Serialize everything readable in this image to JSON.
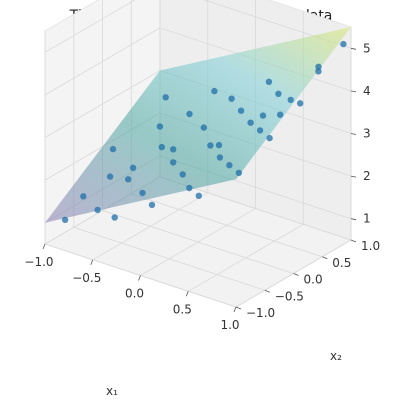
{
  "chart_data": {
    "type": "scatter",
    "title": "The generating function and the data",
    "subtitle": "",
    "xlabel": "x₁",
    "ylabel": "x₂",
    "zlabel": "",
    "xlim": [
      -1.0,
      1.0
    ],
    "ylim": [
      -1.0,
      1.0
    ],
    "zlim": [
      0.5,
      5.5
    ],
    "xticks": [
      "−1.0",
      "−0.5",
      "0.0",
      "0.5",
      "1.0"
    ],
    "yticks": [
      "−1.0",
      "−0.5",
      "0.0",
      "0.5",
      "1.0"
    ],
    "zticks": [
      "1",
      "2",
      "3",
      "4",
      "5"
    ],
    "grid": true,
    "surface": {
      "function": "plane",
      "corners": [
        {
          "x1": -1.0,
          "x2": -1.0,
          "z": 1.0
        },
        {
          "x1": 1.0,
          "x2": -1.0,
          "z": 3.5
        },
        {
          "x1": 1.0,
          "x2": 1.0,
          "z": 5.5
        },
        {
          "x1": -1.0,
          "x2": 1.0,
          "z": 3.0
        }
      ],
      "colormap": "viridis",
      "colors": [
        "#8c7eb3",
        "#4aa6a0",
        "#7fcfd8",
        "#d7e66a"
      ]
    },
    "point_color": "#1f6fa8",
    "points": [
      {
        "x1": -0.85,
        "x2": -0.9,
        "z": 1.1
      },
      {
        "x1": -0.9,
        "x2": -0.5,
        "z": 1.3
      },
      {
        "x1": -0.8,
        "x2": -0.2,
        "z": 1.6
      },
      {
        "x1": -0.95,
        "x2": 0.1,
        "z": 1.9
      },
      {
        "x1": -0.7,
        "x2": 0.5,
        "z": 2.3
      },
      {
        "x1": -0.85,
        "x2": 0.85,
        "z": 2.6
      },
      {
        "x1": -0.6,
        "x2": -0.75,
        "z": 1.4
      },
      {
        "x1": -0.55,
        "x2": -0.3,
        "z": 1.8
      },
      {
        "x1": -0.5,
        "x2": 0.2,
        "z": 2.2
      },
      {
        "x1": -0.45,
        "x2": 0.6,
        "z": 2.7
      },
      {
        "x1": -0.4,
        "x2": 0.95,
        "z": 3.0
      },
      {
        "x1": -0.3,
        "x2": -0.95,
        "z": 1.6
      },
      {
        "x1": -0.25,
        "x2": -0.55,
        "z": 1.9
      },
      {
        "x1": -0.2,
        "x2": -0.1,
        "z": 2.3
      },
      {
        "x1": -0.15,
        "x2": 0.35,
        "z": 2.8
      },
      {
        "x1": -0.1,
        "x2": 0.75,
        "z": 3.2
      },
      {
        "x1": 0.0,
        "x2": -0.8,
        "z": 2.0
      },
      {
        "x1": 0.05,
        "x2": -0.35,
        "z": 2.4
      },
      {
        "x1": 0.1,
        "x2": 0.05,
        "z": 2.8
      },
      {
        "x1": 0.15,
        "x2": 0.5,
        "z": 3.3
      },
      {
        "x1": 0.2,
        "x2": 0.9,
        "z": 3.7
      },
      {
        "x1": 0.3,
        "x2": -0.65,
        "z": 2.5
      },
      {
        "x1": 0.35,
        "x2": -0.2,
        "z": 2.9
      },
      {
        "x1": 0.4,
        "x2": 0.25,
        "z": 3.4
      },
      {
        "x1": 0.45,
        "x2": 0.65,
        "z": 3.8
      },
      {
        "x1": 0.55,
        "x2": -0.9,
        "z": 2.7
      },
      {
        "x1": 0.6,
        "x2": -0.45,
        "z": 3.1
      },
      {
        "x1": 0.65,
        "x2": 0.0,
        "z": 3.6
      },
      {
        "x1": 0.7,
        "x2": 0.45,
        "z": 4.0
      },
      {
        "x1": 0.75,
        "x2": 0.85,
        "z": 4.5
      },
      {
        "x1": 0.85,
        "x2": -0.7,
        "z": 3.3
      },
      {
        "x1": 0.9,
        "x2": -0.25,
        "z": 3.8
      },
      {
        "x1": 0.95,
        "x2": 0.2,
        "z": 4.3
      },
      {
        "x1": 0.9,
        "x2": 0.6,
        "z": 4.7
      },
      {
        "x1": 0.95,
        "x2": 0.95,
        "z": 5.1
      },
      {
        "x1": -0.65,
        "x2": -0.05,
        "z": 1.8
      },
      {
        "x1": -0.35,
        "x2": 0.15,
        "z": 2.3
      },
      {
        "x1": 0.25,
        "x2": -0.05,
        "z": 3.0
      },
      {
        "x1": 0.5,
        "x2": 0.3,
        "z": 3.6
      },
      {
        "x1": 0.8,
        "x2": 0.1,
        "z": 4.0
      }
    ]
  }
}
